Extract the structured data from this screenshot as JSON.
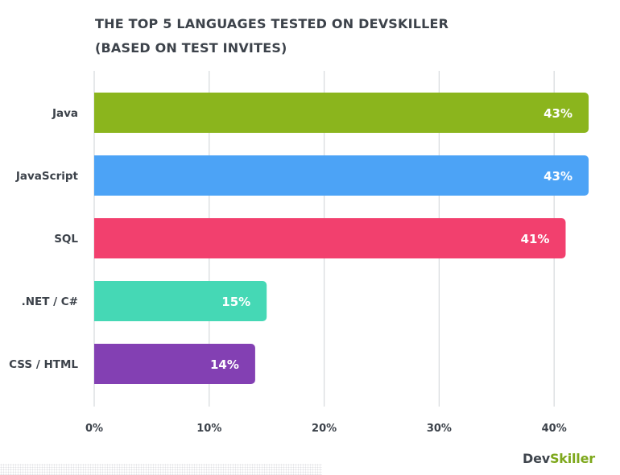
{
  "chart_data": {
    "type": "bar",
    "orientation": "horizontal",
    "title": "THE TOP 5 LANGUAGES TESTED ON DEVSKILLER",
    "subtitle": "(BASED ON TEST INVITES)",
    "categories": [
      "Java",
      "JavaScript",
      "SQL",
      ".NET / C#",
      "CSS / HTML"
    ],
    "values": [
      43,
      43,
      41,
      15,
      14
    ],
    "data_labels": [
      "43%",
      "43%",
      "41%",
      "15%",
      "14%"
    ],
    "colors": [
      "#8bb51d",
      "#4ca3f6",
      "#f2406e",
      "#45d8b5",
      "#8340b3"
    ],
    "x_ticks": [
      0,
      10,
      20,
      30,
      40
    ],
    "x_tick_labels": [
      "0%",
      "10%",
      "20%",
      "30%",
      "40%"
    ],
    "xlim": [
      0,
      45
    ],
    "grid": true,
    "legend": "none"
  },
  "brand": {
    "prefix": "Dev",
    "accent": "Skiller"
  }
}
